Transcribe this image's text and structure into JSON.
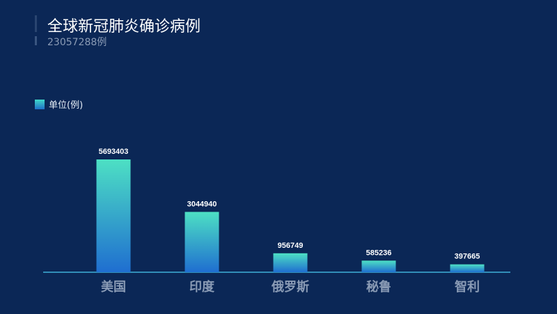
{
  "header": {
    "title": "全球新冠肺炎确诊病例",
    "total": "23057288例"
  },
  "legend": {
    "label": "单位(例)"
  },
  "chart_data": {
    "type": "bar",
    "categories": [
      "美国",
      "印度",
      "俄罗斯",
      "秘鲁",
      "智利"
    ],
    "values": [
      5693403,
      3044940,
      956749,
      585236,
      397665
    ],
    "ylim": [
      0,
      5693403
    ],
    "grid": false,
    "legend_position": "top-left",
    "colors": {
      "bar_top": "#4de0c4",
      "bar_bottom": "#1f6ed0",
      "axis": "#3fb0d8",
      "label": "#8a9bb5"
    }
  }
}
